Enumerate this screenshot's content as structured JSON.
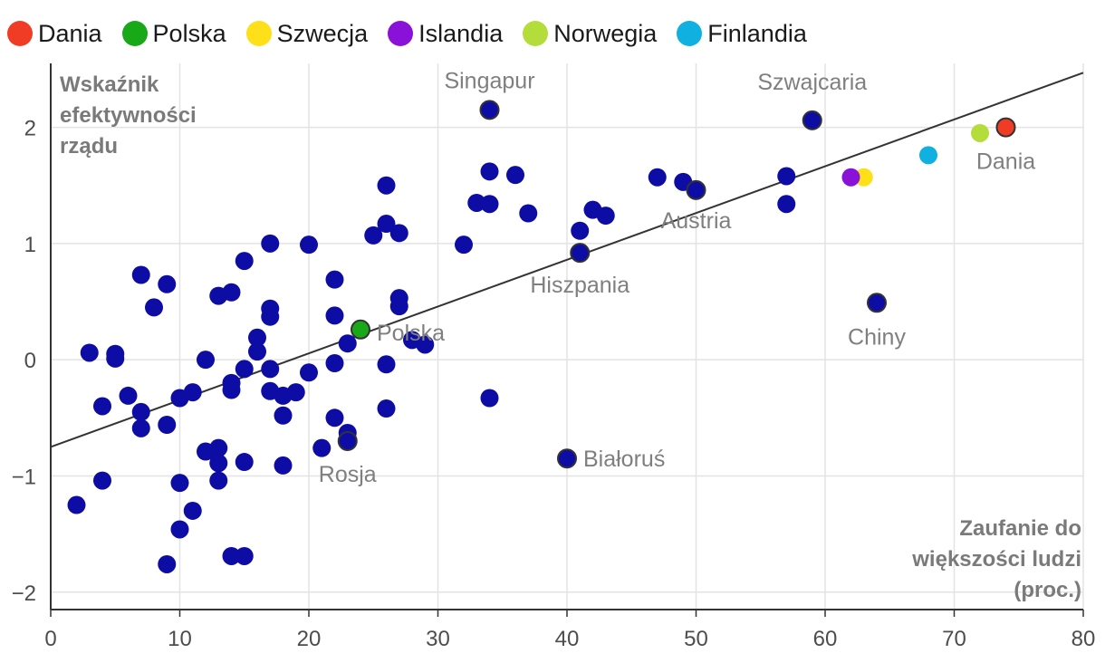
{
  "chart_data": {
    "type": "scatter",
    "title": "",
    "ylabel_lines": [
      "Wskaźnik",
      "efektywności",
      "rządu"
    ],
    "xlabel_lines": [
      "Zaufanie do",
      "większości ludzi",
      "(proc.)"
    ],
    "xlim": [
      0,
      80
    ],
    "ylim": [
      -2.15,
      2.55
    ],
    "x_ticks": [
      0,
      10,
      20,
      30,
      40,
      50,
      60,
      70,
      80
    ],
    "y_ticks": [
      -2,
      -1,
      0,
      1,
      2
    ],
    "y_tick_labels": [
      "−2",
      "−1",
      "0",
      "1",
      "2"
    ],
    "grid": true,
    "legend_position": "top-left",
    "legend": [
      {
        "label": "Dania",
        "color": "#f03c24"
      },
      {
        "label": "Polska",
        "color": "#18a818"
      },
      {
        "label": "Szwecja",
        "color": "#fde01a"
      },
      {
        "label": "Islandia",
        "color": "#8a12d8"
      },
      {
        "label": "Norwegia",
        "color": "#b4dd3c"
      },
      {
        "label": "Finlandia",
        "color": "#10b0e0"
      }
    ],
    "trend_line": {
      "x": [
        0,
        80
      ],
      "y": [
        -0.75,
        2.47
      ],
      "color": "#333333"
    },
    "base_color": "#0d0da6",
    "highlighted": [
      {
        "label": "Dania",
        "x": 74,
        "y": 2.0,
        "color": "#f03c24"
      },
      {
        "label": "Polska",
        "x": 24,
        "y": 0.26,
        "color": "#18a818"
      },
      {
        "label": "Szwecja",
        "x": 63,
        "y": 1.57,
        "color": "#fde01a"
      },
      {
        "label": "Islandia",
        "x": 62,
        "y": 1.57,
        "color": "#8a12d8"
      },
      {
        "label": "Norwegia",
        "x": 72,
        "y": 1.95,
        "color": "#b4dd3c"
      },
      {
        "label": "Finlandia",
        "x": 68,
        "y": 1.76,
        "color": "#10b0e0"
      }
    ],
    "annotated": [
      {
        "label": "Singapur",
        "x": 34,
        "y": 2.15
      },
      {
        "label": "Szwajcaria",
        "x": 59,
        "y": 2.06
      },
      {
        "label": "Austria",
        "x": 50,
        "y": 1.46
      },
      {
        "label": "Hiszpania",
        "x": 41,
        "y": 0.92
      },
      {
        "label": "Chiny",
        "x": 64,
        "y": 0.49
      },
      {
        "label": "Rosja",
        "x": 23,
        "y": -0.7
      },
      {
        "label": "Białoruś",
        "x": 40,
        "y": -0.85
      }
    ],
    "points": [
      {
        "x": 2,
        "y": -1.25
      },
      {
        "x": 3,
        "y": 0.06
      },
      {
        "x": 4,
        "y": -0.4
      },
      {
        "x": 4,
        "y": -1.04
      },
      {
        "x": 5,
        "y": 0.05
      },
      {
        "x": 5,
        "y": 0.01
      },
      {
        "x": 6,
        "y": -0.31
      },
      {
        "x": 7,
        "y": 0.73
      },
      {
        "x": 7,
        "y": -0.45
      },
      {
        "x": 7,
        "y": -0.59
      },
      {
        "x": 8,
        "y": 0.45
      },
      {
        "x": 9,
        "y": 0.65
      },
      {
        "x": 9,
        "y": -0.56
      },
      {
        "x": 9,
        "y": -1.76
      },
      {
        "x": 10,
        "y": -0.33
      },
      {
        "x": 10,
        "y": -1.06
      },
      {
        "x": 10,
        "y": -1.46
      },
      {
        "x": 11,
        "y": -0.28
      },
      {
        "x": 11,
        "y": -1.3
      },
      {
        "x": 12,
        "y": 0.0
      },
      {
        "x": 12,
        "y": -0.79
      },
      {
        "x": 13,
        "y": 0.55
      },
      {
        "x": 13,
        "y": -0.76
      },
      {
        "x": 13,
        "y": -0.89
      },
      {
        "x": 13,
        "y": -1.04
      },
      {
        "x": 14,
        "y": 0.58
      },
      {
        "x": 14,
        "y": -0.2
      },
      {
        "x": 14,
        "y": -0.26
      },
      {
        "x": 14,
        "y": -1.69
      },
      {
        "x": 15,
        "y": 0.85
      },
      {
        "x": 15,
        "y": -0.08
      },
      {
        "x": 15,
        "y": -0.88
      },
      {
        "x": 15,
        "y": -1.69
      },
      {
        "x": 16,
        "y": 0.19
      },
      {
        "x": 16,
        "y": 0.07
      },
      {
        "x": 17,
        "y": 1.0
      },
      {
        "x": 17,
        "y": 0.44
      },
      {
        "x": 17,
        "y": 0.37
      },
      {
        "x": 17,
        "y": -0.08
      },
      {
        "x": 17,
        "y": -0.27
      },
      {
        "x": 18,
        "y": -0.31
      },
      {
        "x": 18,
        "y": -0.48
      },
      {
        "x": 18,
        "y": -0.91
      },
      {
        "x": 19,
        "y": -0.28
      },
      {
        "x": 20,
        "y": 0.99
      },
      {
        "x": 20,
        "y": -0.11
      },
      {
        "x": 21,
        "y": -0.76
      },
      {
        "x": 22,
        "y": 0.69
      },
      {
        "x": 22,
        "y": 0.38
      },
      {
        "x": 22,
        "y": -0.03
      },
      {
        "x": 22,
        "y": -0.5
      },
      {
        "x": 23,
        "y": 0.14
      },
      {
        "x": 23,
        "y": -0.63
      },
      {
        "x": 23,
        "y": -0.7
      },
      {
        "x": 25,
        "y": 1.07
      },
      {
        "x": 26,
        "y": 1.5
      },
      {
        "x": 26,
        "y": 1.17
      },
      {
        "x": 26,
        "y": -0.04
      },
      {
        "x": 26,
        "y": -0.42
      },
      {
        "x": 27,
        "y": 1.09
      },
      {
        "x": 27,
        "y": 0.53
      },
      {
        "x": 27,
        "y": 0.46
      },
      {
        "x": 28,
        "y": 0.17
      },
      {
        "x": 29,
        "y": 0.13
      },
      {
        "x": 32,
        "y": 0.99
      },
      {
        "x": 33,
        "y": 1.35
      },
      {
        "x": 34,
        "y": 2.15
      },
      {
        "x": 34,
        "y": 1.62
      },
      {
        "x": 34,
        "y": 1.34
      },
      {
        "x": 34,
        "y": -0.33
      },
      {
        "x": 36,
        "y": 1.59
      },
      {
        "x": 37,
        "y": 1.26
      },
      {
        "x": 40,
        "y": -0.85
      },
      {
        "x": 41,
        "y": 1.11
      },
      {
        "x": 41,
        "y": 0.92
      },
      {
        "x": 42,
        "y": 1.29
      },
      {
        "x": 43,
        "y": 1.24
      },
      {
        "x": 47,
        "y": 1.57
      },
      {
        "x": 49,
        "y": 1.53
      },
      {
        "x": 50,
        "y": 1.46
      },
      {
        "x": 57,
        "y": 1.58
      },
      {
        "x": 57,
        "y": 1.34
      },
      {
        "x": 59,
        "y": 2.06
      },
      {
        "x": 64,
        "y": 0.49
      }
    ]
  }
}
